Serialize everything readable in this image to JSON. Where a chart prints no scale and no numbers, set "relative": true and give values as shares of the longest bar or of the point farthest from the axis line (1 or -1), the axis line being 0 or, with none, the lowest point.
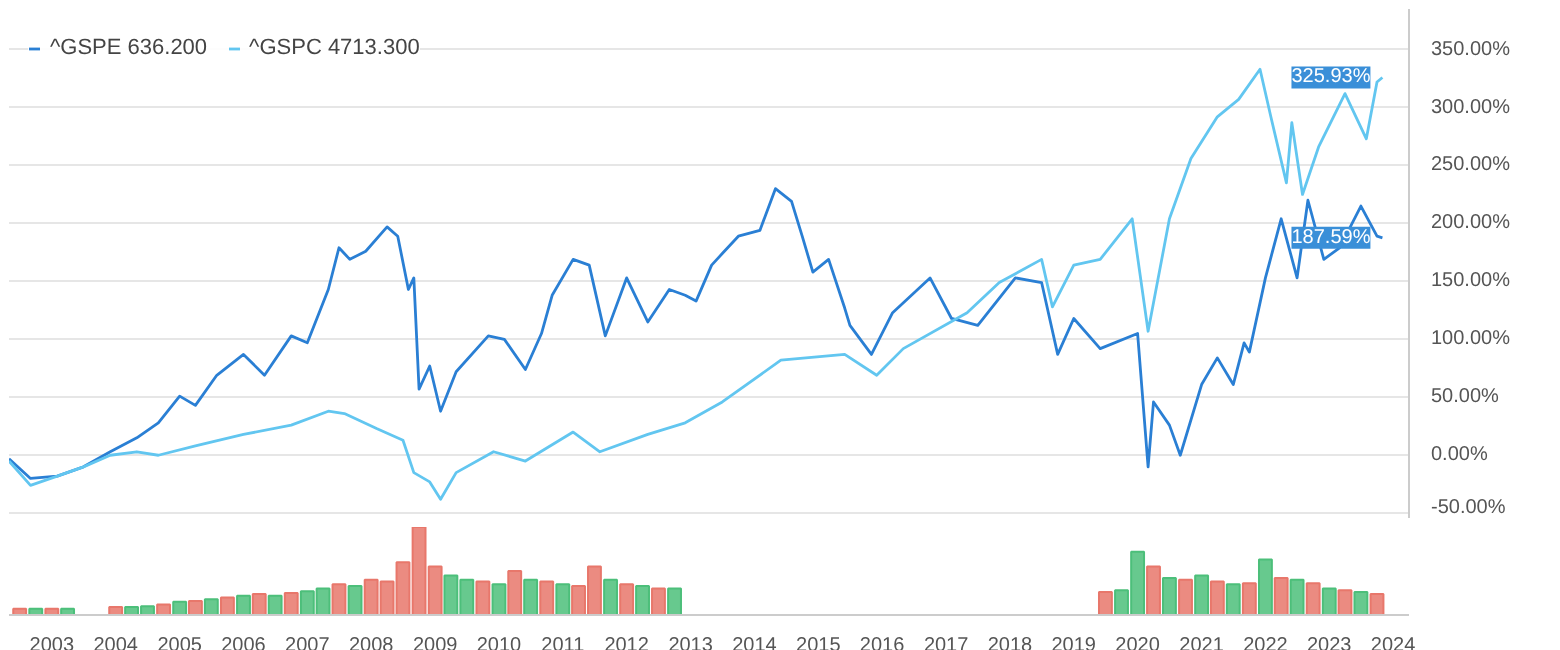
{
  "chart_data": [
    {
      "type": "line",
      "legend": "top left",
      "grid": "y",
      "marker": "none",
      "line_style": "solid",
      "tick_labels": "y",
      "xlim": [
        "2002-05",
        "2024-04"
      ],
      "ylim": [
        -55,
        385
      ],
      "xticks": [
        "2003",
        "2004",
        "2005",
        "2006",
        "2007",
        "2008",
        "2009",
        "2010",
        "2011",
        "2012",
        "2013",
        "2014",
        "2015",
        "2016",
        "2017",
        "2018",
        "2019",
        "2020",
        "2021",
        "2022",
        "2023",
        "2024"
      ],
      "yticks": [
        {
          "value": -50,
          "label": "-50.00%"
        },
        {
          "value": 0,
          "label": "0.00%"
        },
        {
          "value": 50,
          "label": "50.00%"
        },
        {
          "value": 100,
          "label": "100.00%"
        },
        {
          "value": 150,
          "label": "150.00%"
        },
        {
          "value": 200,
          "label": "200.00%"
        },
        {
          "value": 250,
          "label": "250.00%"
        },
        {
          "value": 300,
          "label": "300.00%"
        },
        {
          "value": 350,
          "label": "350.00%"
        }
      ],
      "series": [
        {
          "name": "^GSPE 636.200",
          "color": "#2a7fd4",
          "x": [
            "2002-05",
            "2002-09",
            "2003-02",
            "2003-07",
            "2003-12",
            "2004-05",
            "2004-09",
            "2005-01",
            "2005-04",
            "2005-08",
            "2006-01",
            "2006-05",
            "2006-10",
            "2007-01",
            "2007-05",
            "2007-07",
            "2007-09",
            "2007-12",
            "2008-04",
            "2008-06",
            "2008-08",
            "2008-09",
            "2008-10",
            "2008-12",
            "2009-02",
            "2009-05",
            "2009-11",
            "2010-02",
            "2010-06",
            "2010-09",
            "2010-11",
            "2011-03",
            "2011-06",
            "2011-09",
            "2012-01",
            "2012-05",
            "2012-09",
            "2012-12",
            "2013-02",
            "2013-05",
            "2013-07",
            "2013-10",
            "2014-02",
            "2014-05",
            "2014-08",
            "2014-10",
            "2014-12",
            "2015-03",
            "2015-06",
            "2015-07",
            "2015-11",
            "2016-03",
            "2016-10",
            "2017-02",
            "2017-07",
            "2018-02",
            "2018-07",
            "2018-10",
            "2019-01",
            "2019-06",
            "2020-01",
            "2020-03",
            "2020-04",
            "2020-07",
            "2020-09",
            "2021-01",
            "2021-04",
            "2021-07",
            "2021-09",
            "2021-10",
            "2022-01",
            "2022-04",
            "2022-07",
            "2022-09",
            "2022-12",
            "2023-03",
            "2023-07",
            "2023-10",
            "2023-11"
          ],
          "values": [
            -3,
            -20,
            -18,
            -10,
            3,
            15,
            28,
            51,
            43,
            69,
            87,
            69,
            103,
            97,
            143,
            179,
            169,
            176,
            197,
            189,
            143,
            153,
            57,
            77,
            38,
            72,
            103,
            100,
            74,
            105,
            138,
            169,
            164,
            103,
            153,
            115,
            143,
            138,
            133,
            164,
            174,
            189,
            194,
            230,
            219,
            189,
            158,
            169,
            127,
            112,
            87,
            123,
            153,
            118,
            112,
            153,
            149,
            87,
            118,
            92,
            105,
            -10,
            46,
            26,
            0,
            61,
            84,
            61,
            97,
            89,
            153,
            204,
            153,
            220,
            169,
            179,
            215,
            189,
            187.59
          ]
        },
        {
          "name": "^GSPC 4713.300",
          "color": "#62c6f0",
          "x": [
            "2002-05",
            "2002-09",
            "2003-02",
            "2003-07",
            "2003-12",
            "2004-05",
            "2004-09",
            "2005-04",
            "2006-01",
            "2006-10",
            "2007-05",
            "2007-08",
            "2008-02",
            "2008-07",
            "2008-09",
            "2008-12",
            "2009-02",
            "2009-05",
            "2009-12",
            "2010-06",
            "2011-03",
            "2011-08",
            "2012-05",
            "2012-12",
            "2013-07",
            "2014-06",
            "2015-06",
            "2015-12",
            "2016-05",
            "2017-05",
            "2017-11",
            "2018-07",
            "2018-09",
            "2019-01",
            "2019-06",
            "2019-12",
            "2020-03",
            "2020-07",
            "2020-11",
            "2021-04",
            "2021-08",
            "2021-12",
            "2022-02",
            "2022-05",
            "2022-06",
            "2022-08",
            "2022-11",
            "2023-04",
            "2023-08",
            "2023-10",
            "2023-11"
          ],
          "values": [
            -5,
            -26,
            -18,
            -10,
            0,
            3,
            0,
            8,
            18,
            26,
            38,
            36,
            23,
            13,
            -15,
            -23,
            -38,
            -15,
            3,
            -5,
            20,
            3,
            18,
            28,
            46,
            82,
            87,
            69,
            92,
            123,
            149,
            169,
            128,
            164,
            169,
            204,
            107,
            204,
            256,
            292,
            307,
            333,
            292,
            235,
            287,
            225,
            266,
            312,
            273,
            322,
            325.93
          ]
        }
      ],
      "annotations": [
        {
          "text": "325.93%",
          "x": "2023-11",
          "y": 325.93
        },
        {
          "text": "187.59%",
          "x": "2023-11",
          "y": 187.59
        }
      ]
    },
    {
      "type": "bar",
      "relative": true,
      "tick_labels": "x",
      "xlim": [
        "2002-05",
        "2024-04"
      ],
      "xticks": [
        "2003",
        "2004",
        "2005",
        "2006",
        "2007",
        "2008",
        "2009",
        "2010",
        "2011",
        "2012",
        "2013",
        "2014",
        "2015",
        "2016",
        "2017",
        "2018",
        "2019",
        "2020",
        "2021",
        "2022",
        "2023",
        "2024"
      ],
      "x": [
        "2002-07",
        "2002-10",
        "2003-01",
        "2003-04",
        "2004-01",
        "2004-04",
        "2004-07",
        "2004-10",
        "2005-01",
        "2005-04",
        "2005-07",
        "2005-10",
        "2006-01",
        "2006-04",
        "2006-07",
        "2006-10",
        "2007-01",
        "2007-04",
        "2007-07",
        "2007-10",
        "2008-01",
        "2008-04",
        "2008-07",
        "2008-10",
        "2009-01",
        "2009-04",
        "2009-07",
        "2009-10",
        "2010-01",
        "2010-04",
        "2010-07",
        "2010-10",
        "2011-01",
        "2011-04",
        "2011-07",
        "2011-10",
        "2012-01",
        "2012-04",
        "2012-07",
        "2012-10",
        "2019-07",
        "2019-10",
        "2020-01",
        "2020-04",
        "2020-07",
        "2020-10",
        "2021-01",
        "2021-04",
        "2021-07",
        "2021-10",
        "2022-01",
        "2022-04",
        "2022-07",
        "2022-10",
        "2023-01",
        "2023-04",
        "2023-07",
        "2023-10"
      ],
      "values": [
        0.07,
        0.07,
        0.07,
        0.07,
        0.09,
        0.09,
        0.1,
        0.12,
        0.15,
        0.16,
        0.18,
        0.2,
        0.22,
        0.24,
        0.22,
        0.25,
        0.27,
        0.3,
        0.35,
        0.33,
        0.4,
        0.38,
        0.6,
        1.0,
        0.55,
        0.45,
        0.4,
        0.38,
        0.35,
        0.5,
        0.4,
        0.38,
        0.35,
        0.33,
        0.55,
        0.4,
        0.35,
        0.33,
        0.3,
        0.3,
        0.26,
        0.28,
        0.72,
        0.55,
        0.42,
        0.4,
        0.45,
        0.38,
        0.35,
        0.36,
        0.63,
        0.42,
        0.4,
        0.36,
        0.3,
        0.28,
        0.26,
        0.24
      ],
      "colors": [
        "#e8776b",
        "#4cbf7a",
        "#e8776b",
        "#4cbf7a",
        "#e8776b",
        "#4cbf7a",
        "#4cbf7a",
        "#e8776b",
        "#4cbf7a",
        "#e8776b",
        "#4cbf7a",
        "#e8776b",
        "#4cbf7a",
        "#e8776b",
        "#4cbf7a",
        "#e8776b",
        "#4cbf7a",
        "#4cbf7a",
        "#e8776b",
        "#4cbf7a",
        "#e8776b",
        "#e8776b",
        "#e8776b",
        "#e8776b",
        "#e8776b",
        "#4cbf7a",
        "#4cbf7a",
        "#e8776b",
        "#4cbf7a",
        "#e8776b",
        "#4cbf7a",
        "#e8776b",
        "#4cbf7a",
        "#e8776b",
        "#e8776b",
        "#4cbf7a",
        "#e8776b",
        "#4cbf7a",
        "#e8776b",
        "#4cbf7a",
        "#e8776b",
        "#4cbf7a",
        "#4cbf7a",
        "#e8776b",
        "#4cbf7a",
        "#e8776b",
        "#4cbf7a",
        "#e8776b",
        "#4cbf7a",
        "#e8776b",
        "#4cbf7a",
        "#e8776b",
        "#4cbf7a",
        "#e8776b",
        "#4cbf7a",
        "#e8776b",
        "#4cbf7a",
        "#e8776b"
      ]
    }
  ]
}
